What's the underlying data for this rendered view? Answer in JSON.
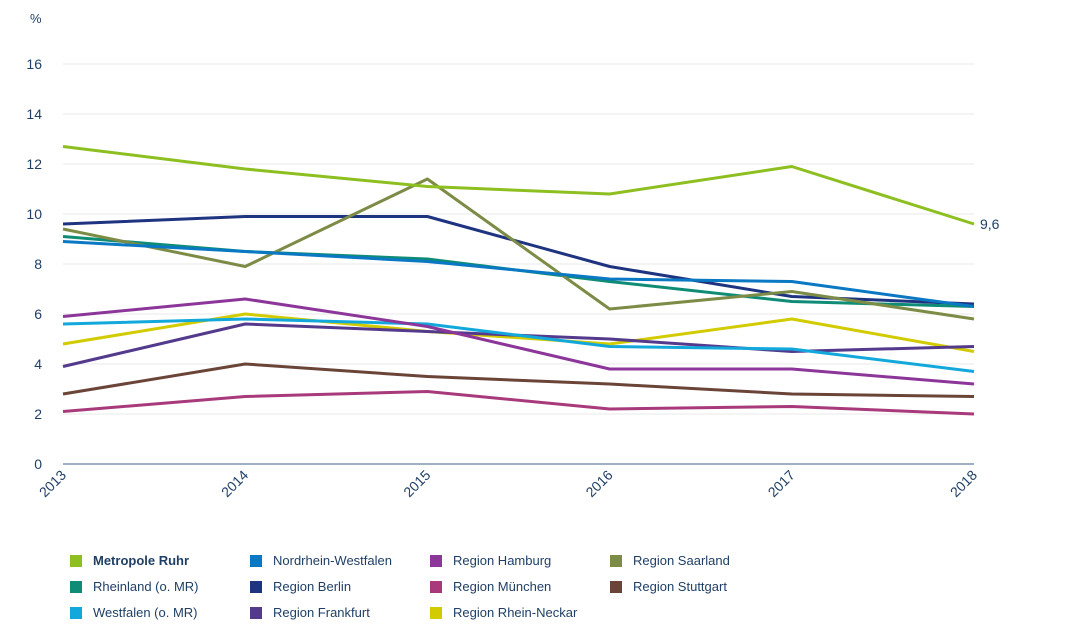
{
  "chart_data": {
    "type": "line",
    "title": "",
    "ylabel": "%",
    "xlabel": "",
    "x": [
      "2013",
      "2014",
      "2015",
      "2016",
      "2017",
      "2018"
    ],
    "ylim": [
      0,
      16
    ],
    "yticks": [
      "0",
      "2",
      "4",
      "6",
      "8",
      "10",
      "12",
      "14",
      "16"
    ],
    "grid": true,
    "legend_position": "bottom",
    "end_annotation": {
      "series": "Metropole Ruhr",
      "text": "9,6"
    },
    "series": [
      {
        "name": "Metropole Ruhr",
        "color": "#8cbf1f",
        "bold": true,
        "values": [
          12.7,
          11.8,
          11.1,
          10.8,
          11.9,
          9.6
        ]
      },
      {
        "name": "Nordrhein-Westfalen",
        "color": "#0a78c2",
        "values": [
          8.9,
          8.5,
          8.1,
          7.4,
          7.3,
          6.3
        ]
      },
      {
        "name": "Region Hamburg",
        "color": "#8c3699",
        "values": [
          5.9,
          6.6,
          5.5,
          3.8,
          3.8,
          3.2
        ]
      },
      {
        "name": "Region Saarland",
        "color": "#7c8c46",
        "values": [
          9.4,
          7.9,
          11.4,
          6.2,
          6.9,
          5.8
        ]
      },
      {
        "name": "Rheinland (o. MR)",
        "color": "#0f8c76",
        "values": [
          9.1,
          8.5,
          8.2,
          7.3,
          6.5,
          6.3
        ]
      },
      {
        "name": "Region Berlin",
        "color": "#1f3480",
        "values": [
          9.6,
          9.9,
          9.9,
          7.9,
          6.7,
          6.4
        ]
      },
      {
        "name": "Region München",
        "color": "#a83a7c",
        "values": [
          2.1,
          2.7,
          2.9,
          2.2,
          2.3,
          2.0
        ]
      },
      {
        "name": "Region Stuttgart",
        "color": "#6b4438",
        "values": [
          2.8,
          4.0,
          3.5,
          3.2,
          2.8,
          2.7
        ]
      },
      {
        "name": "Westfalen (o. MR)",
        "color": "#13a8dc",
        "values": [
          5.6,
          5.8,
          5.6,
          4.7,
          4.6,
          3.7
        ]
      },
      {
        "name": "Region Frankfurt",
        "color": "#543a8c",
        "values": [
          3.9,
          5.6,
          5.3,
          5.0,
          4.5,
          4.7
        ]
      },
      {
        "name": "Region Rhein-Neckar",
        "color": "#d1cb00",
        "values": [
          4.8,
          6.0,
          5.3,
          4.8,
          5.8,
          4.5
        ]
      }
    ]
  }
}
